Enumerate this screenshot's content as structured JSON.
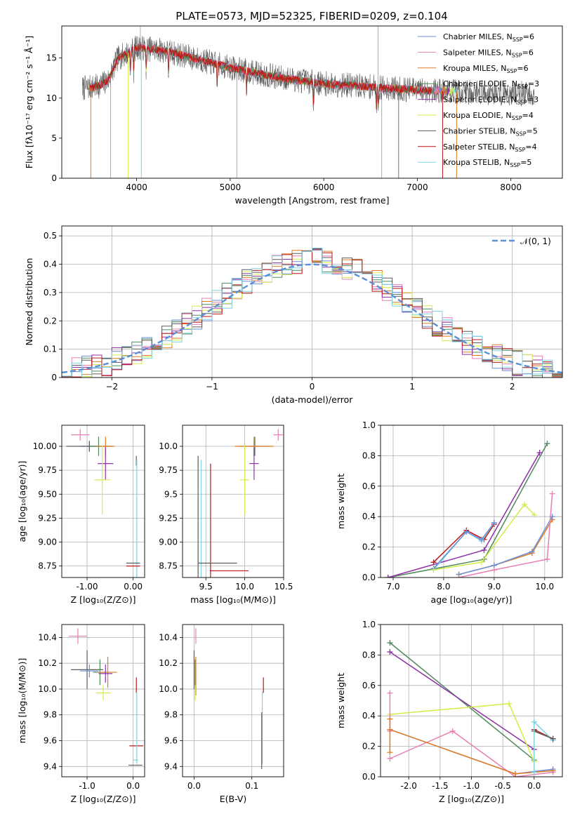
{
  "title": "PLATE=0573, MJD=52325, FIBERID=0209, z=0.104",
  "colors": {
    "chabrier_miles": "#6a8fd8",
    "salpeter_miles": "#e87fb4",
    "kroupa_miles": "#e07b22",
    "chabrier_elodie": "#4f8a5b",
    "salpeter_elodie": "#8f32a8",
    "kroupa_elodie": "#d4ec4a",
    "chabrier_stelib": "#5c5c5c",
    "salpeter_stelib": "#c01717",
    "kroupa_stelib": "#7fd3e2",
    "normal_curve": "#5b8fd6",
    "grid": "#b0b0b0"
  },
  "chart_data": [
    {
      "id": "spectrum",
      "type": "line",
      "xlabel": "wavelength [Angstrom, rest frame]",
      "ylabel": "Flux [fλ10⁻¹⁷ erg cm⁻² s⁻¹ Å⁻¹]",
      "xlim": [
        3200,
        8550
      ],
      "ylim": [
        0,
        19
      ],
      "xticks": [
        4000,
        5000,
        6000,
        7000,
        8000
      ],
      "yticks": [
        0,
        5,
        10,
        15
      ],
      "grid": false,
      "legend_position": "top-right",
      "legend": [
        {
          "main": "Chabrier MILES, N",
          "sub": "SSP",
          "tail": "=6",
          "color": "chabrier_miles"
        },
        {
          "main": "Salpeter MILES, N",
          "sub": "SSP",
          "tail": "=6",
          "color": "salpeter_miles"
        },
        {
          "main": "Kroupa MILES, N",
          "sub": "SSP",
          "tail": "=6",
          "color": "kroupa_miles"
        },
        {
          "main": "Chabrier ELODIE, N",
          "sub": "SSP",
          "tail": "=3",
          "color": "chabrier_elodie"
        },
        {
          "main": "Salpeter ELODIE, N",
          "sub": "SSP",
          "tail": "=3",
          "color": "salpeter_elodie"
        },
        {
          "main": "Kroupa ELODIE, N",
          "sub": "SSP",
          "tail": "=4",
          "color": "kroupa_elodie"
        },
        {
          "main": "Chabrier STELIB, N",
          "sub": "SSP",
          "tail": "=5",
          "color": "chabrier_stelib"
        },
        {
          "main": "Salpeter STELIB, N",
          "sub": "SSP",
          "tail": "=4",
          "color": "salpeter_stelib"
        },
        {
          "main": "Kroupa STELIB, N",
          "sub": "SSP",
          "tail": "=5",
          "color": "kroupa_stelib"
        }
      ],
      "continuum": {
        "wavelength": [
          3420,
          3600,
          3700,
          3800,
          3900,
          4000,
          4100,
          4300,
          4500,
          5000,
          5500,
          6000,
          6500,
          7000,
          7500
        ],
        "flux": [
          11.2,
          11.5,
          12.3,
          15.0,
          15.6,
          16.3,
          16.2,
          15.9,
          15.3,
          13.8,
          12.6,
          11.8,
          11.4,
          11.0,
          10.8
        ]
      },
      "model_ranges": [
        [
          3420,
          3530
        ],
        [
          3480,
          7430
        ],
        [
          3950,
          6800
        ],
        [
          3650,
          7450
        ]
      ],
      "data_range": [
        3420,
        8250
      ]
    },
    {
      "id": "residual_hist",
      "type": "bar",
      "xlabel": "(data-model)/error",
      "ylabel": "Normed distribution",
      "xlim": [
        -2.5,
        2.5
      ],
      "ylim": [
        0,
        0.535
      ],
      "xticks": [
        -2,
        -1,
        0,
        1,
        2
      ],
      "yticks": [
        0.0,
        0.1,
        0.2,
        0.3,
        0.4,
        0.5
      ],
      "grid": true,
      "legend_position": "top-right",
      "legend_label": "𝒩(0, 1)",
      "bin_width": 0.1,
      "normal_curve": {
        "mean": 0,
        "sigma": 1
      }
    },
    {
      "id": "age_vs_Z",
      "type": "scatter",
      "xlabel": "Z [log₁₀(Z/Z⊙)]",
      "ylabel": "age  [log₁₀(age/yr)]",
      "xlim": [
        -1.55,
        0.25
      ],
      "ylim": [
        8.63,
        10.22
      ],
      "xticks": [
        -1,
        0
      ],
      "yticks": [
        8.75,
        9.0,
        9.25,
        9.5,
        9.75,
        10.0
      ],
      "grid": true,
      "points": [
        {
          "model": "salpeter_miles",
          "x": -1.15,
          "y": 10.12,
          "xerr": 0.2,
          "yerr": 0.06
        },
        {
          "model": "chabrier_miles",
          "x": -0.95,
          "y": 10.0,
          "xerr": 0.2,
          "yerr": 0.06
        },
        {
          "model": "chabrier_stelib",
          "x": -0.95,
          "y": 10.0,
          "xerr": 0.5,
          "yerr": 0.05
        },
        {
          "model": "chabrier_elodie",
          "x": -0.75,
          "y": 10.0,
          "xerr": 0.2,
          "yerr": 0.1
        },
        {
          "model": "kroupa_miles",
          "x": -0.6,
          "y": 10.0,
          "xerr": 0.2,
          "yerr": 0.1
        },
        {
          "model": "salpeter_elodie",
          "x": -0.6,
          "y": 9.82,
          "xerr": 0.17,
          "yerr": 0.17
        },
        {
          "model": "kroupa_elodie",
          "x": -0.67,
          "y": 9.65,
          "xerr": 0.17,
          "yerr": 0.36
        },
        {
          "model": "chabrier_stelib",
          "x": 0.07,
          "y": 9.85,
          "xerr": 0.0,
          "yerr": 0.05
        },
        {
          "model": "kroupa_stelib",
          "x": 0.08,
          "y": 8.76,
          "xerr": 0.0,
          "yerr": 1.1
        },
        {
          "model": "chabrier_stelib",
          "x": 0.0,
          "y": 8.78,
          "xerr": 0.15,
          "yerr": 0.0
        },
        {
          "model": "salpeter_stelib",
          "x": 0.0,
          "y": 8.75,
          "xerr": 0.15,
          "yerr": 0.0
        }
      ]
    },
    {
      "id": "age_vs_mass",
      "type": "scatter",
      "xlabel": "mass [log₁₀(M/M⊙)]",
      "ylabel": "",
      "xlim": [
        9.2,
        10.5
      ],
      "ylim": [
        8.63,
        10.22
      ],
      "xticks": [
        9.5,
        10.0,
        10.5
      ],
      "yticks": [
        8.75,
        9.0,
        9.25,
        9.5,
        9.75,
        10.0
      ],
      "grid": true,
      "points": [
        {
          "model": "salpeter_miles",
          "x": 10.43,
          "y": 10.12,
          "xerr": 0.06,
          "yerr": 0.06
        },
        {
          "model": "chabrier_miles",
          "x": 10.12,
          "y": 10.0,
          "xerr": 0.2,
          "yerr": 0.06
        },
        {
          "model": "chabrier_elodie",
          "x": 10.13,
          "y": 10.0,
          "xerr": 0.05,
          "yerr": 0.1
        },
        {
          "model": "kroupa_miles",
          "x": 10.12,
          "y": 10.0,
          "xerr": 0.25,
          "yerr": 0.1
        },
        {
          "model": "salpeter_elodie",
          "x": 10.12,
          "y": 9.82,
          "xerr": 0.06,
          "yerr": 0.17
        },
        {
          "model": "kroupa_elodie",
          "x": 10.0,
          "y": 9.65,
          "xerr": 0.06,
          "yerr": 0.36
        },
        {
          "model": "chabrier_stelib",
          "x": 9.4,
          "y": 8.78,
          "xerr": 0.0,
          "yerr": 1.12
        },
        {
          "model": "kroupa_stelib",
          "x": 9.44,
          "y": 8.76,
          "xerr": 0.0,
          "yerr": 1.1
        },
        {
          "model": "salpeter_stelib",
          "x": 9.56,
          "y": 8.75,
          "xerr": 0.0,
          "yerr": 1.07
        },
        {
          "model": "chabrier_stelib",
          "x": 9.65,
          "y": 8.78,
          "xerr": 0.25,
          "yerr": 0.0
        },
        {
          "model": "salpeter_stelib",
          "x": 9.8,
          "y": 8.7,
          "xerr": 0.25,
          "yerr": 0.0
        }
      ]
    },
    {
      "id": "massweight_vs_age",
      "type": "line",
      "xlabel": "age  [log₁₀(age/yr)]",
      "ylabel": "mass weight",
      "xlim": [
        6.75,
        10.35
      ],
      "ylim": [
        0,
        1
      ],
      "xticks": [
        7,
        8,
        9,
        10
      ],
      "yticks": [
        0.0,
        0.2,
        0.4,
        0.6,
        0.8,
        1.0
      ],
      "grid": true,
      "series": [
        {
          "model": "chabrier_elodie",
          "x": [
            6.9,
            8.8,
            10.05
          ],
          "y": [
            0.0,
            0.12,
            0.88
          ]
        },
        {
          "model": "salpeter_elodie",
          "x": [
            6.9,
            8.8,
            9.9
          ],
          "y": [
            0.0,
            0.18,
            0.82
          ]
        },
        {
          "model": "salpeter_stelib",
          "x": [
            7.8,
            8.45,
            8.8,
            9.0
          ],
          "y": [
            0.1,
            0.31,
            0.25,
            0.35
          ]
        },
        {
          "model": "kroupa_stelib",
          "x": [
            7.8,
            8.45,
            8.75,
            9.0
          ],
          "y": [
            0.05,
            0.3,
            0.24,
            0.36
          ]
        },
        {
          "model": "chabrier_miles",
          "x": [
            7.8,
            8.45,
            8.75,
            9.0
          ],
          "y": [
            0.06,
            0.3,
            0.25,
            0.36
          ]
        },
        {
          "model": "kroupa_elodie",
          "x": [
            7.8,
            8.75,
            9.6,
            9.8
          ],
          "y": [
            0.05,
            0.1,
            0.48,
            0.41
          ]
        },
        {
          "model": "kroupa_miles",
          "x": [
            8.3,
            9.0,
            9.75,
            10.15
          ],
          "y": [
            0.02,
            0.08,
            0.16,
            0.38
          ]
        },
        {
          "model": "chabrier_miles",
          "x": [
            8.3,
            9.0,
            9.75,
            10.15
          ],
          "y": [
            0.02,
            0.08,
            0.17,
            0.4
          ]
        },
        {
          "model": "salpeter_miles",
          "x": [
            8.3,
            9.0,
            10.05,
            10.15
          ],
          "y": [
            0.0,
            0.05,
            0.12,
            0.55
          ]
        }
      ]
    },
    {
      "id": "mass_vs_Z",
      "type": "scatter",
      "xlabel": "Z [log₁₀(Z/Z⊙)]",
      "ylabel": "mass [log₁₀(M/M⊙)]",
      "xlim": [
        -1.55,
        0.25
      ],
      "ylim": [
        9.32,
        10.5
      ],
      "xticks": [
        -1,
        0
      ],
      "yticks": [
        9.4,
        9.6,
        9.8,
        10.0,
        10.2,
        10.4
      ],
      "grid": true,
      "points": [
        {
          "model": "salpeter_miles",
          "x": -1.2,
          "y": 10.41,
          "xerr": 0.2,
          "yerr": 0.06
        },
        {
          "model": "chabrier_stelib",
          "x": -1.0,
          "y": 10.15,
          "xerr": 0.35,
          "yerr": 0.15
        },
        {
          "model": "chabrier_miles",
          "x": -0.95,
          "y": 10.14,
          "xerr": 0.2,
          "yerr": 0.05
        },
        {
          "model": "chabrier_elodie",
          "x": -0.72,
          "y": 10.13,
          "xerr": 0.15,
          "yerr": 0.1
        },
        {
          "model": "kroupa_miles",
          "x": -0.55,
          "y": 10.13,
          "xerr": 0.2,
          "yerr": 0.12
        },
        {
          "model": "salpeter_elodie",
          "x": -0.6,
          "y": 10.12,
          "xerr": 0.15,
          "yerr": 0.07
        },
        {
          "model": "kroupa_elodie",
          "x": -0.65,
          "y": 9.97,
          "xerr": 0.15,
          "yerr": 0.06
        },
        {
          "model": "salpeter_stelib",
          "x": 0.07,
          "y": 9.56,
          "xerr": 0.15,
          "yerr": 0.0
        },
        {
          "model": "salpeter_stelib",
          "x": 0.07,
          "y": 10.03,
          "xerr": 0.0,
          "yerr": 0.06
        },
        {
          "model": "kroupa_stelib",
          "x": 0.06,
          "y": 9.45,
          "xerr": 0.05,
          "yerr": 0.0
        },
        {
          "model": "kroupa_stelib",
          "x": 0.08,
          "y": 9.7,
          "xerr": 0.0,
          "yerr": 0.28
        },
        {
          "model": "chabrier_stelib",
          "x": 0.05,
          "y": 9.41,
          "xerr": 0.15,
          "yerr": 0.0
        }
      ]
    },
    {
      "id": "mass_vs_ebv",
      "type": "scatter",
      "xlabel": "E(B-V)",
      "ylabel": "",
      "xlim": [
        -0.02,
        0.155
      ],
      "ylim": [
        9.32,
        10.5
      ],
      "xticks": [
        0.0,
        0.1
      ],
      "yticks": [
        9.4,
        9.6,
        9.8,
        10.0,
        10.2,
        10.4
      ],
      "grid": true,
      "points": [
        {
          "model": "salpeter_miles",
          "x": 0.003,
          "y": 10.41,
          "xerr": 0.0,
          "yerr": 0.06
        },
        {
          "model": "chabrier_stelib",
          "x": 0.0,
          "y": 10.15,
          "xerr": 0.0,
          "yerr": 0.15
        },
        {
          "model": "chabrier_elodie",
          "x": 0.002,
          "y": 10.13,
          "xerr": 0.0,
          "yerr": 0.1
        },
        {
          "model": "kroupa_miles",
          "x": 0.003,
          "y": 10.1,
          "xerr": 0.0,
          "yerr": 0.15
        },
        {
          "model": "kroupa_elodie",
          "x": 0.002,
          "y": 9.97,
          "xerr": 0.0,
          "yerr": 0.06
        },
        {
          "model": "salpeter_stelib",
          "x": 0.12,
          "y": 10.03,
          "xerr": 0.0,
          "yerr": 0.06
        },
        {
          "model": "kroupa_stelib",
          "x": 0.118,
          "y": 9.7,
          "xerr": 0.0,
          "yerr": 0.28
        },
        {
          "model": "chabrier_stelib",
          "x": 0.117,
          "y": 9.6,
          "xerr": 0.0,
          "yerr": 0.22
        }
      ]
    },
    {
      "id": "massweight_vs_Z",
      "type": "line",
      "xlabel": "Z [log₁₀(Z/Z⊙)]",
      "ylabel": "mass weight",
      "xlim": [
        -2.45,
        0.45
      ],
      "ylim": [
        0,
        1
      ],
      "xticks": [
        -2.0,
        -1.5,
        -1.0,
        -0.5,
        0.0
      ],
      "yticks": [
        0.0,
        0.2,
        0.4,
        0.6,
        0.8,
        1.0
      ],
      "grid": true,
      "series": [
        {
          "model": "chabrier_elodie",
          "x": [
            -2.3,
            0.0
          ],
          "y": [
            0.88,
            0.11
          ]
        },
        {
          "model": "salpeter_elodie",
          "x": [
            -2.3,
            0.0
          ],
          "y": [
            0.82,
            0.18
          ]
        },
        {
          "model": "kroupa_elodie",
          "x": [
            -2.3,
            -0.4,
            0.0
          ],
          "y": [
            0.41,
            0.48,
            0.1
          ]
        },
        {
          "model": "salpeter_miles",
          "x": [
            -2.3,
            -1.3,
            -0.3,
            0.3
          ],
          "y": [
            0.12,
            0.3,
            0.0,
            0.03
          ]
        },
        {
          "model": "chabrier_miles",
          "x": [
            -2.3,
            -0.3,
            0.3
          ],
          "y": [
            0.31,
            0.02,
            0.05
          ]
        },
        {
          "model": "kroupa_miles",
          "x": [
            -2.3,
            -0.3,
            0.3
          ],
          "y": [
            0.31,
            0.02,
            0.04
          ]
        },
        {
          "model": "salpeter_stelib",
          "x": [
            0.0,
            0.3
          ],
          "y": [
            0.31,
            0.25
          ]
        },
        {
          "model": "kroupa_stelib",
          "x": [
            0.0,
            0.3
          ],
          "y": [
            0.36,
            0.24
          ]
        },
        {
          "model": "chabrier_stelib",
          "x": [
            0.0,
            0.3
          ],
          "y": [
            0.3,
            0.25
          ]
        },
        {
          "model": "salpeter_miles",
          "x": [
            -2.3,
            -2.3
          ],
          "y": [
            0.3,
            0.55
          ]
        },
        {
          "model": "kroupa_miles",
          "x": [
            -2.3,
            -2.3
          ],
          "y": [
            0.16,
            0.38
          ]
        },
        {
          "model": "kroupa_stelib",
          "x": [
            0.0,
            0.0
          ],
          "y": [
            0.03,
            0.36
          ]
        }
      ]
    }
  ]
}
